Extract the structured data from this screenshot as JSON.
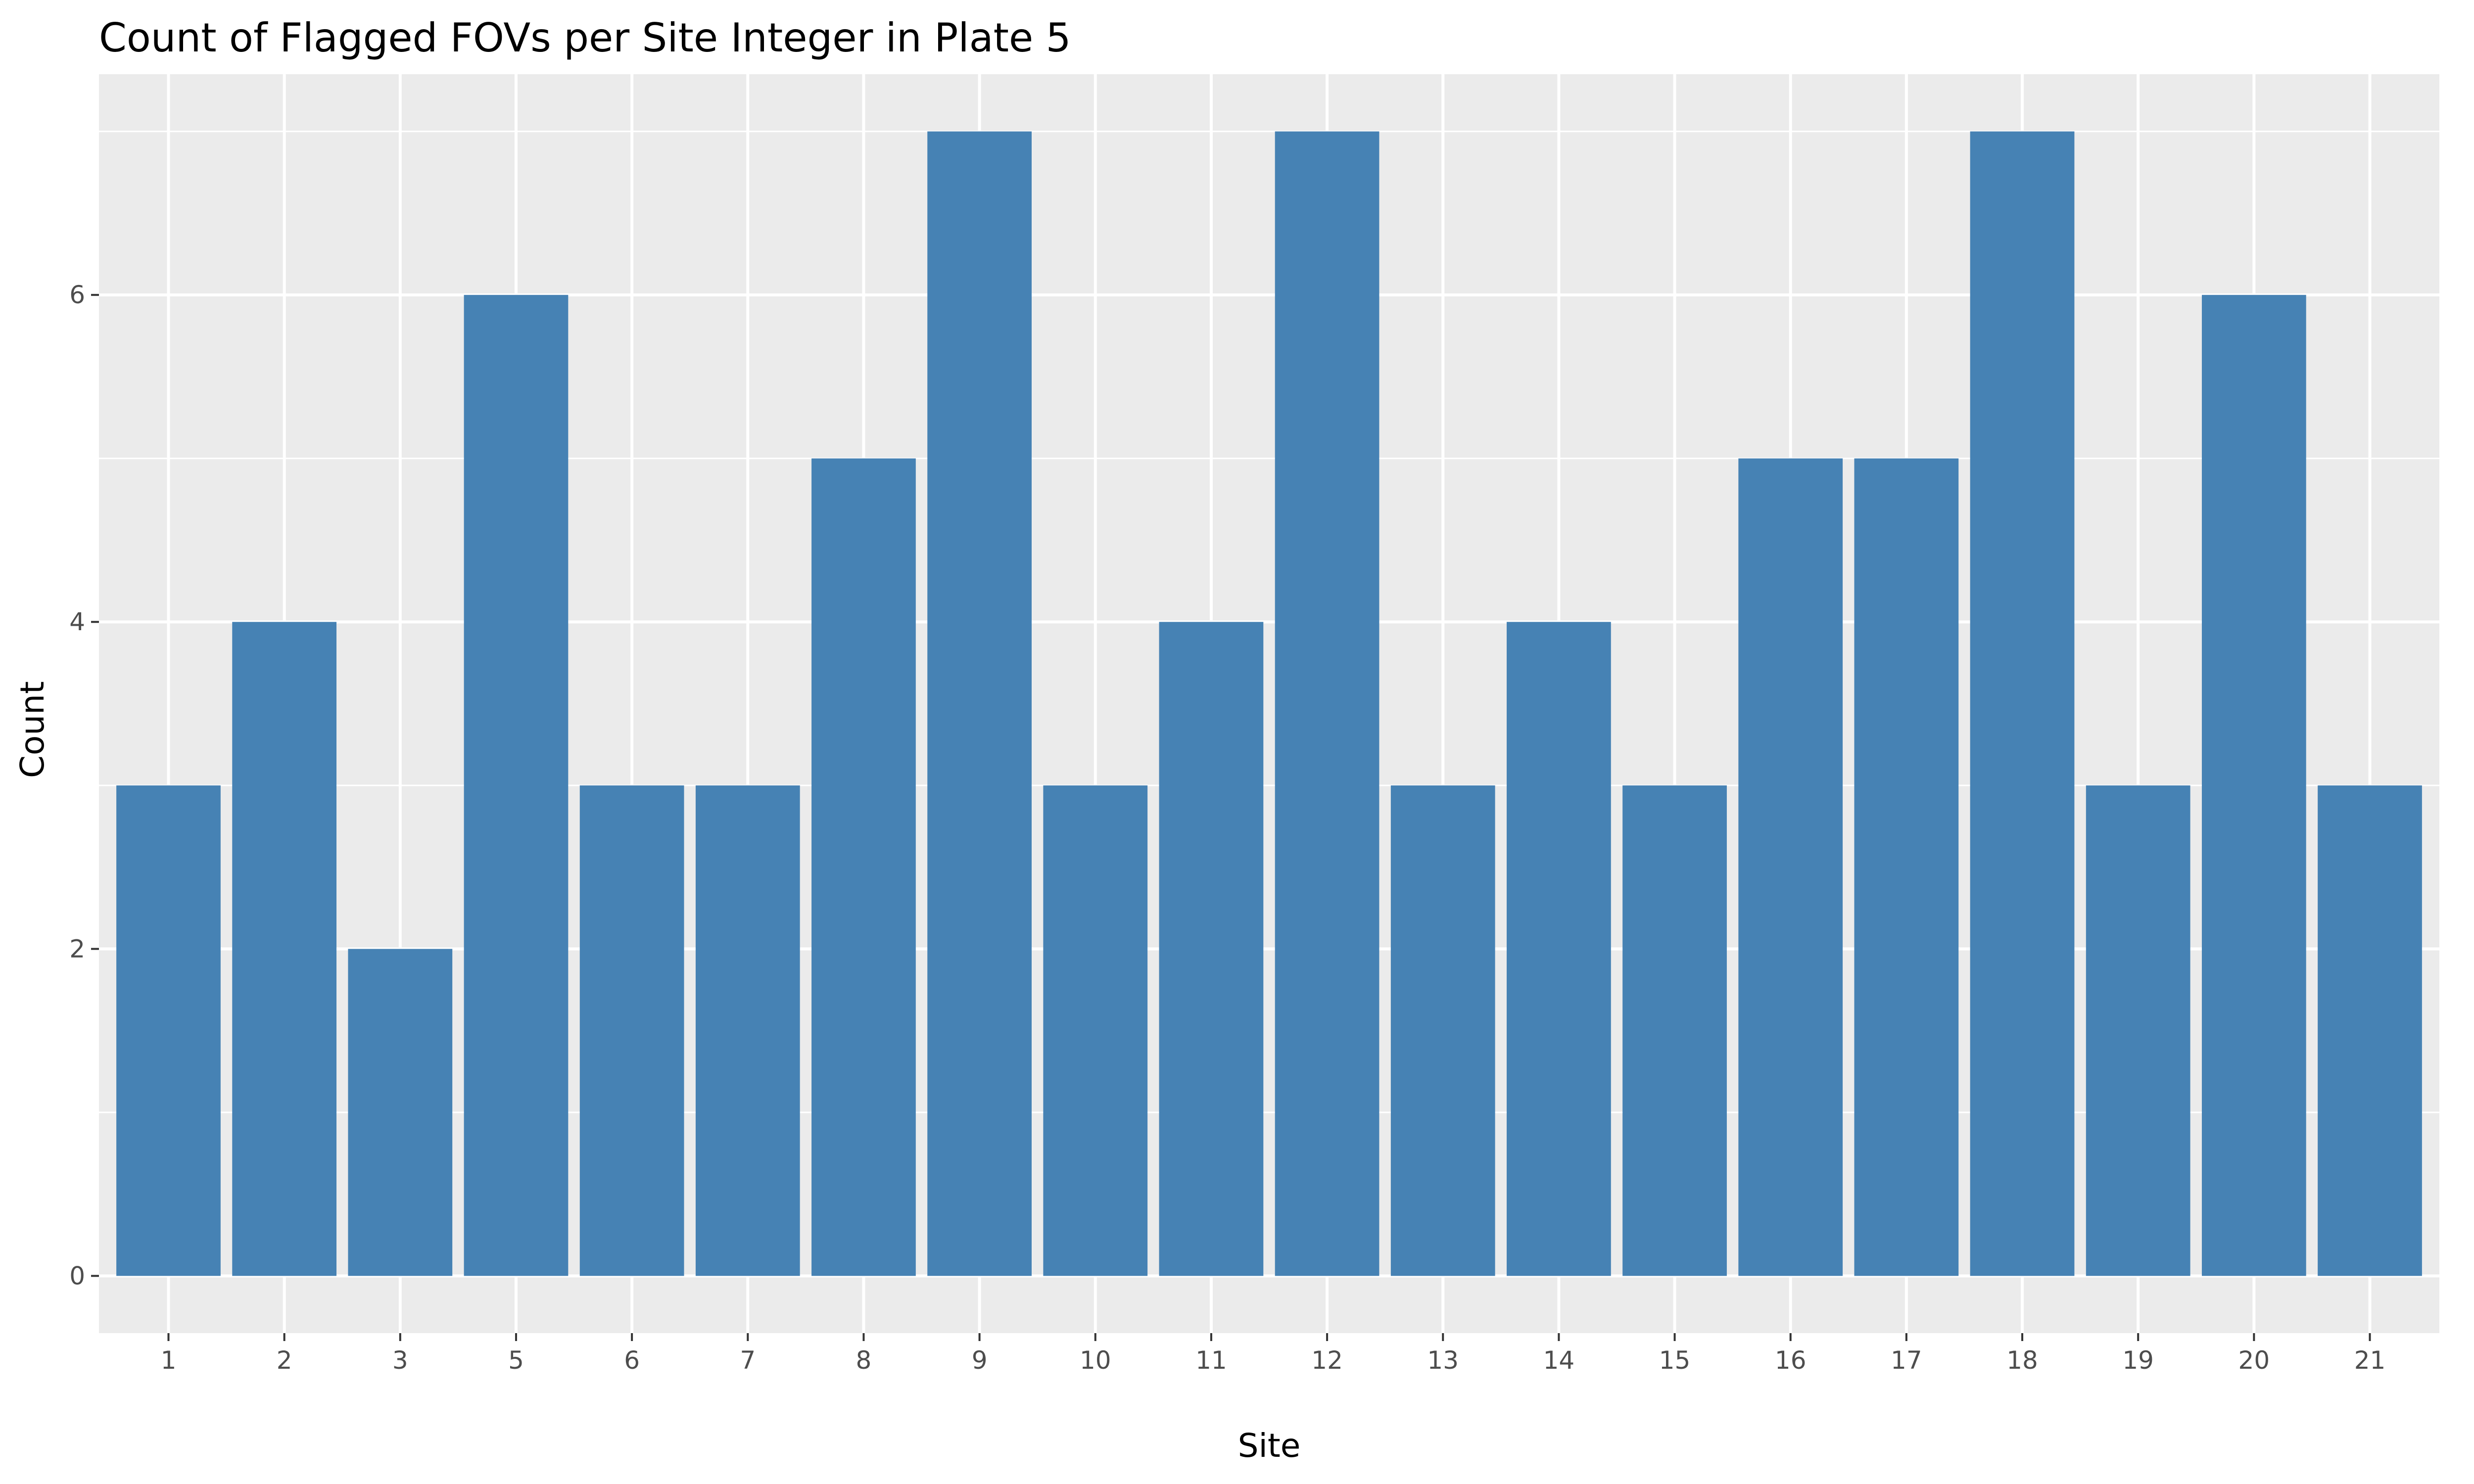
{
  "chart_data": {
    "type": "bar",
    "title": "Count of Flagged FOVs per Site Integer in Plate 5",
    "xlabel": "Site",
    "ylabel": "Count",
    "categories": [
      "1",
      "2",
      "3",
      "5",
      "6",
      "7",
      "8",
      "9",
      "10",
      "11",
      "12",
      "13",
      "14",
      "15",
      "16",
      "17",
      "18",
      "19",
      "20",
      "21"
    ],
    "values": [
      3,
      4,
      2,
      6,
      3,
      3,
      5,
      7,
      3,
      4,
      7,
      3,
      4,
      3,
      5,
      5,
      7,
      3,
      6,
      3
    ],
    "ylim": [
      -0.35,
      7.35
    ],
    "yticks": [
      0,
      2,
      4,
      6
    ],
    "yticks_minor": [
      1,
      3,
      5,
      7
    ],
    "grid": true,
    "colors": {
      "bar": "#4682b4",
      "panel": "#ebebeb",
      "grid": "#ffffff",
      "tick": "#333333"
    }
  }
}
